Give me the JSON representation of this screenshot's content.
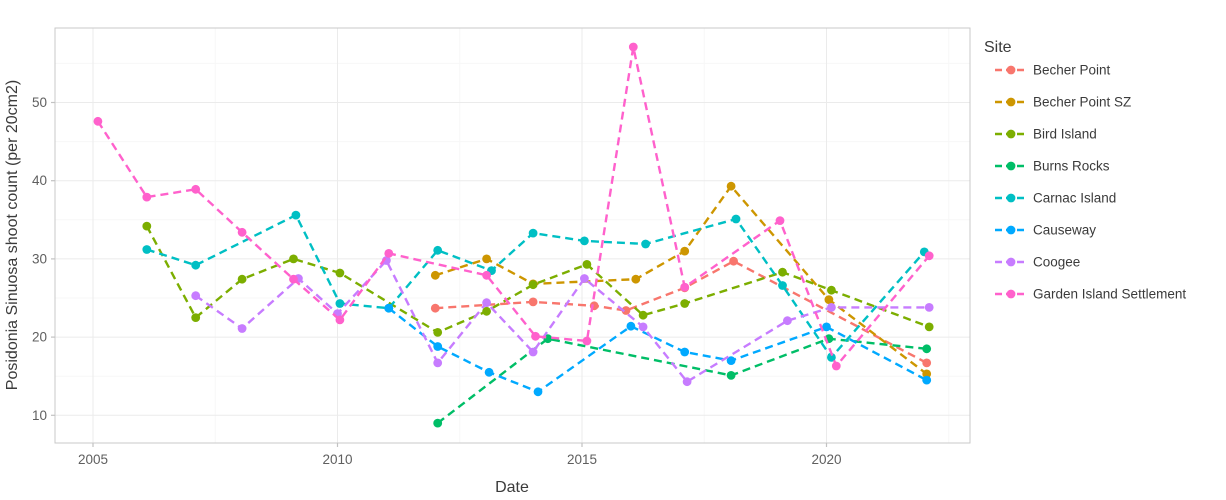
{
  "chart_data": {
    "type": "line",
    "title": "",
    "xlabel": "Date",
    "ylabel": "Posidonia Sinuosa shoot count (per 20cm2)",
    "legend_title": "Site",
    "legend_position": "right",
    "line_style": "dashed",
    "marker": "circle",
    "grid": true,
    "x_ticks": [
      2005,
      2010,
      2015,
      2020
    ],
    "x_minor_ticks": [
      2007.5,
      2012.5,
      2017.5,
      2022.5
    ],
    "y_ticks": [
      10,
      20,
      30,
      40,
      50
    ],
    "y_minor_ticks": [
      15,
      25,
      35,
      45,
      55
    ],
    "xlim": [
      2004.2,
      2022.95
    ],
    "ylim": [
      6.4,
      59.5
    ],
    "series": [
      {
        "name": "Becher Point",
        "color": "#F8766D",
        "points": [
          [
            2012.0,
            23.7
          ],
          [
            2014.0,
            24.5
          ],
          [
            2015.25,
            24.0
          ],
          [
            2015.9,
            23.4
          ],
          [
            2017.1,
            26.3
          ],
          [
            2018.1,
            29.7
          ],
          [
            2022.05,
            16.7
          ]
        ]
      },
      {
        "name": "Becher Point SZ",
        "color": "#CD9600",
        "points": [
          [
            2012.0,
            27.9
          ],
          [
            2013.05,
            30.0
          ],
          [
            2014.0,
            26.8
          ],
          [
            2016.1,
            27.4
          ],
          [
            2017.1,
            31.0
          ],
          [
            2018.05,
            39.3
          ],
          [
            2020.05,
            24.8
          ],
          [
            2022.05,
            15.3
          ]
        ]
      },
      {
        "name": "Bird Island",
        "color": "#7CAE00",
        "points": [
          [
            2006.1,
            34.2
          ],
          [
            2007.1,
            22.5
          ],
          [
            2008.05,
            27.4
          ],
          [
            2009.1,
            30.0
          ],
          [
            2010.05,
            28.2
          ],
          [
            2012.05,
            20.6
          ],
          [
            2013.05,
            23.3
          ],
          [
            2014.0,
            26.7
          ],
          [
            2015.1,
            29.3
          ],
          [
            2016.25,
            22.8
          ],
          [
            2017.1,
            24.3
          ],
          [
            2019.1,
            28.3
          ],
          [
            2020.1,
            26.0
          ],
          [
            2022.1,
            21.3
          ]
        ]
      },
      {
        "name": "Burns Rocks",
        "color": "#00BE67",
        "points": [
          [
            2012.05,
            9.0
          ],
          [
            2014.3,
            19.8
          ],
          [
            2018.05,
            15.1
          ],
          [
            2020.05,
            19.8
          ],
          [
            2022.05,
            18.5
          ]
        ]
      },
      {
        "name": "Carnac Island",
        "color": "#00BFC4",
        "points": [
          [
            2006.1,
            31.2
          ],
          [
            2007.1,
            29.2
          ],
          [
            2009.15,
            35.6
          ],
          [
            2010.05,
            24.3
          ],
          [
            2011.05,
            23.7
          ],
          [
            2012.05,
            31.1
          ],
          [
            2013.15,
            28.5
          ],
          [
            2014.0,
            33.3
          ],
          [
            2015.05,
            32.3
          ],
          [
            2016.3,
            31.9
          ],
          [
            2018.15,
            35.1
          ],
          [
            2019.1,
            26.6
          ],
          [
            2020.1,
            17.4
          ],
          [
            2022.0,
            30.9
          ]
        ]
      },
      {
        "name": "Causeway",
        "color": "#00A9FF",
        "points": [
          [
            2011.05,
            23.7
          ],
          [
            2012.05,
            18.8
          ],
          [
            2013.1,
            15.5
          ],
          [
            2014.1,
            13.0
          ],
          [
            2016.0,
            21.4
          ],
          [
            2017.1,
            18.1
          ],
          [
            2018.05,
            17.0
          ],
          [
            2020.0,
            21.3
          ],
          [
            2022.05,
            14.5
          ]
        ]
      },
      {
        "name": "Coogee",
        "color": "#C77CFF",
        "points": [
          [
            2007.1,
            25.3
          ],
          [
            2008.05,
            21.1
          ],
          [
            2009.2,
            27.5
          ],
          [
            2010.0,
            23.0
          ],
          [
            2011.0,
            29.8
          ],
          [
            2012.05,
            16.7
          ],
          [
            2013.05,
            24.4
          ],
          [
            2014.0,
            18.1
          ],
          [
            2015.05,
            27.5
          ],
          [
            2016.25,
            21.3
          ],
          [
            2017.15,
            14.3
          ],
          [
            2019.2,
            22.1
          ],
          [
            2020.1,
            23.8
          ],
          [
            2022.1,
            23.8
          ]
        ]
      },
      {
        "name": "Garden Island Settlement",
        "color": "#FF61CC",
        "points": [
          [
            2005.1,
            47.6
          ],
          [
            2006.1,
            37.9
          ],
          [
            2007.1,
            38.9
          ],
          [
            2008.05,
            33.4
          ],
          [
            2009.1,
            27.4
          ],
          [
            2010.05,
            22.2
          ],
          [
            2011.05,
            30.7
          ],
          [
            2013.05,
            27.9
          ],
          [
            2014.05,
            20.1
          ],
          [
            2015.1,
            19.5
          ],
          [
            2016.05,
            57.1
          ],
          [
            2017.1,
            26.4
          ],
          [
            2019.05,
            34.9
          ],
          [
            2020.2,
            16.3
          ],
          [
            2022.1,
            30.4
          ]
        ]
      }
    ],
    "style": {
      "panel_background": "#ffffff",
      "panel_border": "#c9c9c9",
      "grid_major": "#ebebeb",
      "grid_minor": "#f7f7f7",
      "tick_color": "#c2c2c2",
      "text_color": "#5f5f5f"
    }
  }
}
